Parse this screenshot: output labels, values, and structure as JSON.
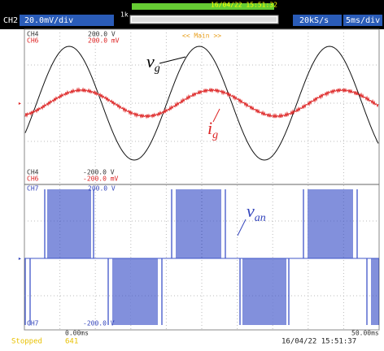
{
  "header": {
    "channel": "CH2",
    "scale": "20.0mV/div",
    "zoom": "1k",
    "trigger_time": "16/04/22 15:51:32",
    "sample_rate": "20kS/s",
    "time_div": "5ms/div"
  },
  "upper_panel": {
    "mode": "<< Main >>",
    "top": [
      {
        "channel": "CH4",
        "level": "200.0 V"
      },
      {
        "channel": "CH6",
        "level": "200.0 mV"
      }
    ],
    "bottom": [
      {
        "channel": "CH4",
        "level": "-200.0 V"
      },
      {
        "channel": "CH6",
        "level": "-200.0 mV"
      }
    ]
  },
  "lower_panel": {
    "top": {
      "channel": "CH7",
      "level": "200.0 V"
    },
    "bottom": {
      "channel": "CH7",
      "level": "-200.0 V"
    }
  },
  "time_axis": {
    "start": "0.00ms",
    "end": "50.00ms"
  },
  "status": {
    "state": "Stopped",
    "count": "641",
    "time": "16/04/22 15:51:37"
  },
  "annotations": [
    {
      "symbol": "v",
      "subscript": "g"
    },
    {
      "symbol": "i",
      "subscript": "g"
    },
    {
      "symbol": "v",
      "subscript": "an"
    }
  ]
}
